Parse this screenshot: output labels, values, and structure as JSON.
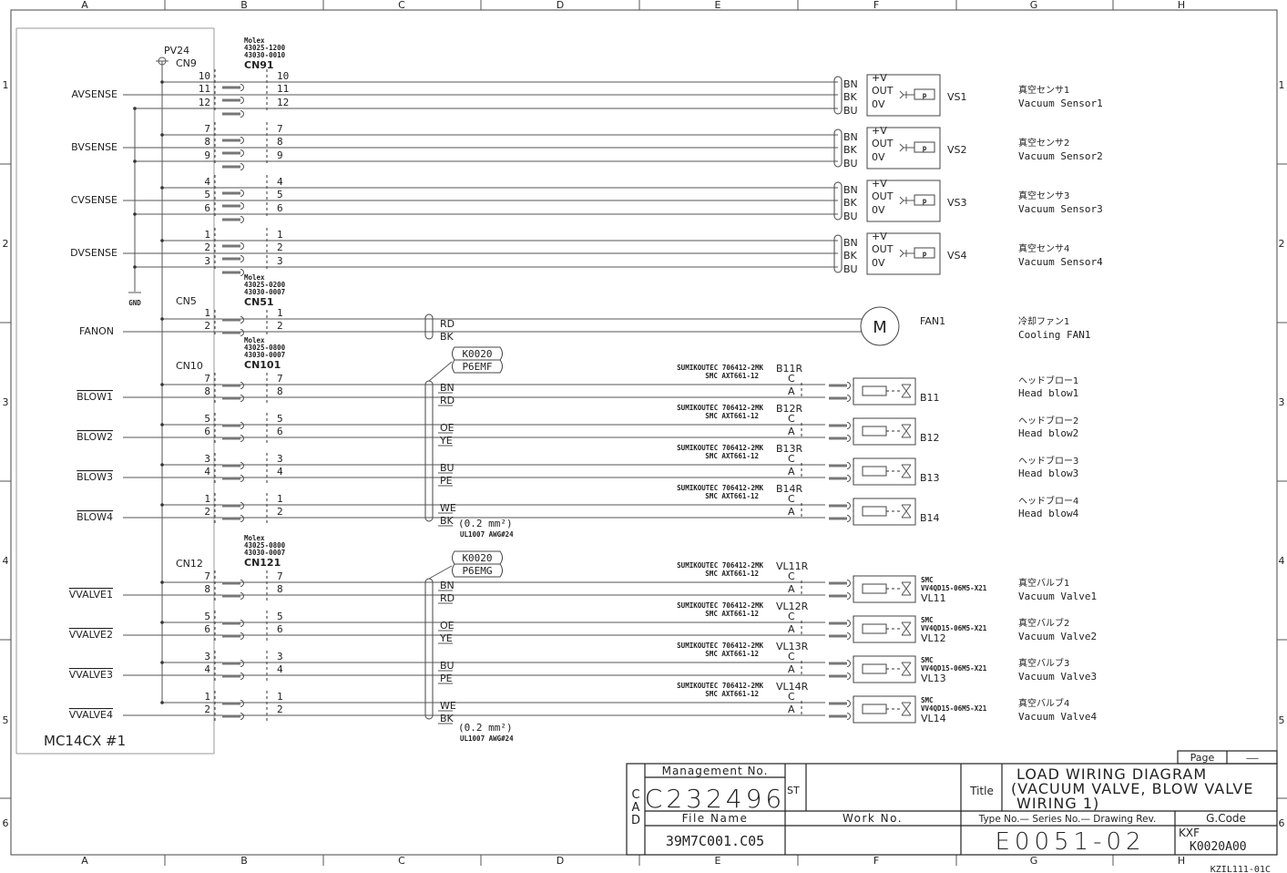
{
  "frame": {
    "columns": [
      "A",
      "B",
      "C",
      "D",
      "E",
      "F",
      "G",
      "H"
    ],
    "rows": [
      "1",
      "2",
      "3",
      "4",
      "5",
      "6"
    ]
  },
  "controller": {
    "name": "MC14CX #1",
    "power": "PV24",
    "ground": "GND"
  },
  "sensor_block": {
    "controller_cn": "CN9",
    "molex": [
      "Molex",
      "43025-1200",
      "43030-0010"
    ],
    "cn": "CN91",
    "sensors": [
      {
        "signal": "AVSENSE",
        "pins": [
          "10",
          "11",
          "12"
        ],
        "wires": [
          "BN",
          "BK",
          "BU"
        ],
        "terms": [
          "+V",
          "OUT",
          "0V"
        ],
        "symbol": "p",
        "id": "VS1",
        "jp": "真空センサ1",
        "en": "Vacuum Sensor1"
      },
      {
        "signal": "BVSENSE",
        "pins": [
          "7",
          "8",
          "9"
        ],
        "wires": [
          "BN",
          "BK",
          "BU"
        ],
        "terms": [
          "+V",
          "OUT",
          "0V"
        ],
        "symbol": "p",
        "id": "VS2",
        "jp": "真空センサ2",
        "en": "Vacuum Sensor2"
      },
      {
        "signal": "CVSENSE",
        "pins": [
          "4",
          "5",
          "6"
        ],
        "wires": [
          "BN",
          "BK",
          "BU"
        ],
        "terms": [
          "+V",
          "OUT",
          "0V"
        ],
        "symbol": "p",
        "id": "VS3",
        "jp": "真空センサ3",
        "en": "Vacuum Sensor3"
      },
      {
        "signal": "DVSENSE",
        "pins": [
          "1",
          "2",
          "3"
        ],
        "wires": [
          "BN",
          "BK",
          "BU"
        ],
        "terms": [
          "+V",
          "OUT",
          "0V"
        ],
        "symbol": "p",
        "id": "VS4",
        "jp": "真空センサ4",
        "en": "Vacuum Sensor4"
      }
    ]
  },
  "fan_block": {
    "controller_cn": "CN5",
    "molex": [
      "Molex",
      "43025-0200",
      "43030-0007"
    ],
    "cn": "CN51",
    "signal": "FANON",
    "pins": [
      "1",
      "2"
    ],
    "wires": [
      "RD",
      "BK"
    ],
    "symbol": "M",
    "id": "FAN1",
    "jp": "冷却ファン1",
    "en": "Cooling FAN1"
  },
  "blow_block": {
    "controller_cn": "CN10",
    "molex": [
      "Molex",
      "43025-0800",
      "43030-0007"
    ],
    "cn": "CN101",
    "cable": [
      "K0020",
      "P6EMF"
    ],
    "cable_spec": [
      "(0.2 mm²)",
      "UL1007 AWG#24"
    ],
    "items": [
      {
        "signal": "BLOW1",
        "pins": [
          "7",
          "8"
        ],
        "wires": [
          "BN",
          "RD"
        ],
        "part": [
          "SUMIKOUTEC 706412-2MK",
          "SMC AXT661-12"
        ],
        "conn": "B11R",
        "terms": [
          "C",
          "A"
        ],
        "id": "B11",
        "jp": "ヘッドブロー1",
        "en": "Head blow1"
      },
      {
        "signal": "BLOW2",
        "pins": [
          "5",
          "6"
        ],
        "wires": [
          "OE",
          "YE"
        ],
        "part": [
          "SUMIKOUTEC 706412-2MK",
          "SMC AXT661-12"
        ],
        "conn": "B12R",
        "terms": [
          "C",
          "A"
        ],
        "id": "B12",
        "jp": "ヘッドブロー2",
        "en": "Head blow2"
      },
      {
        "signal": "BLOW3",
        "pins": [
          "3",
          "4"
        ],
        "wires": [
          "BU",
          "PE"
        ],
        "part": [
          "SUMIKOUTEC 706412-2MK",
          "SMC AXT661-12"
        ],
        "conn": "B13R",
        "terms": [
          "C",
          "A"
        ],
        "id": "B13",
        "jp": "ヘッドブロー3",
        "en": "Head blow3"
      },
      {
        "signal": "BLOW4",
        "pins": [
          "1",
          "2"
        ],
        "wires": [
          "WE",
          "BK"
        ],
        "part": [
          "SUMIKOUTEC 706412-2MK",
          "SMC AXT661-12"
        ],
        "conn": "B14R",
        "terms": [
          "C",
          "A"
        ],
        "id": "B14",
        "jp": "ヘッドブロー4",
        "en": "Head blow4"
      }
    ]
  },
  "vacuum_block": {
    "controller_cn": "CN12",
    "molex": [
      "Molex",
      "43025-0800",
      "43030-0007"
    ],
    "cn": "CN121",
    "cable": [
      "K0020",
      "P6EMG"
    ],
    "cable_spec": [
      "(0.2 mm²)",
      "UL1007 AWG#24"
    ],
    "items": [
      {
        "signal": "VVALVE1",
        "pins": [
          "7",
          "8"
        ],
        "wires": [
          "BN",
          "RD"
        ],
        "part": [
          "SUMIKOUTEC 706412-2MK",
          "SMC AXT661-12"
        ],
        "conn": "VL11R",
        "terms": [
          "C",
          "A"
        ],
        "model": [
          "SMC",
          "VV4QD15-06M5-X21"
        ],
        "id": "VL11",
        "jp": "真空バルブ1",
        "en": "Vacuum Valve1"
      },
      {
        "signal": "VVALVE2",
        "pins": [
          "5",
          "6"
        ],
        "wires": [
          "OE",
          "YE"
        ],
        "part": [
          "SUMIKOUTEC 706412-2MK",
          "SMC AXT661-12"
        ],
        "conn": "VL12R",
        "terms": [
          "C",
          "A"
        ],
        "model": [
          "SMC",
          "VV4QD15-06M5-X21"
        ],
        "id": "VL12",
        "jp": "真空バルブ2",
        "en": "Vacuum Valve2"
      },
      {
        "signal": "VVALVE3",
        "pins": [
          "3",
          "4"
        ],
        "wires": [
          "BU",
          "PE"
        ],
        "part": [
          "SUMIKOUTEC 706412-2MK",
          "SMC AXT661-12"
        ],
        "conn": "VL13R",
        "terms": [
          "C",
          "A"
        ],
        "model": [
          "SMC",
          "VV4QD15-06M5-X21"
        ],
        "id": "VL13",
        "jp": "真空バルブ3",
        "en": "Vacuum Valve3"
      },
      {
        "signal": "VVALVE4",
        "pins": [
          "1",
          "2"
        ],
        "wires": [
          "WE",
          "BK"
        ],
        "part": [
          "SUMIKOUTEC 706412-2MK",
          "SMC AXT661-12"
        ],
        "conn": "VL14R",
        "terms": [
          "C",
          "A"
        ],
        "model": [
          "SMC",
          "VV4QD15-06M5-X21"
        ],
        "id": "VL14",
        "jp": "真空バルブ4",
        "en": "Vacuum Valve4"
      }
    ]
  },
  "title_block": {
    "page_label": "Page",
    "page_value": "——",
    "cad": [
      "C",
      "A",
      "D"
    ],
    "management_label": "Management No.",
    "management_no": "C232496",
    "st_label": "ST",
    "title_label": "Title",
    "title_lines": [
      "LOAD WIRING DIAGRAM",
      "(VACUUM VALVE, BLOW VALVE",
      "WIRING 1)"
    ],
    "file_name_label": "File Name",
    "file_name": "39M7C001.C05",
    "work_no_label": "Work No.",
    "type_label": "Type No.— Series No.— Drawing Rev.",
    "type_value": "E0051-02",
    "gcode_label": "G.Code",
    "gcode_lines": [
      "KXF",
      "K0020A00"
    ],
    "form_code": "KZIL111-01C"
  }
}
